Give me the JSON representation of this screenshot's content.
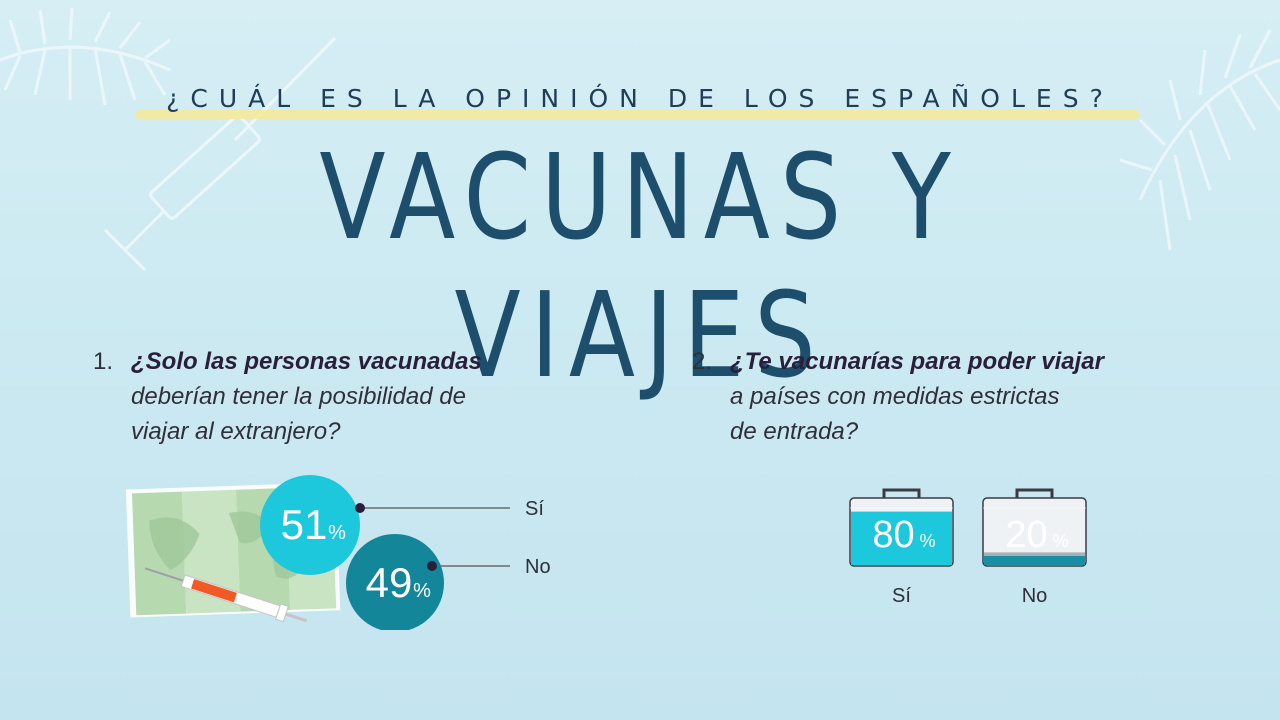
{
  "header": {
    "subtitle": "¿CUÁL ES LA OPINIÓN DE LOS ESPAÑOLES?",
    "title": "VACUNAS Y VIAJES"
  },
  "questions": [
    {
      "number": "1.",
      "bold": "¿Solo las personas vacunadas",
      "line2": "deberían tener la posibilidad de",
      "line3": "viajar al extranjero?"
    },
    {
      "number": "2.",
      "bold": "¿Te vacunarías para poder viajar",
      "line2": "a países con medidas estrictas",
      "line3": "de entrada?"
    }
  ],
  "colors": {
    "cyan": "#1ec8dc",
    "teal": "#14869a",
    "title": "#1d4f6c",
    "case_gray": "#a7b1b8"
  },
  "chart_data": [
    {
      "type": "bubble",
      "question": "1",
      "categories": [
        "Sí",
        "No"
      ],
      "values": [
        51,
        49
      ],
      "value_labels": [
        "51",
        "49"
      ],
      "unit": "%",
      "colors": [
        "#1ec8dc",
        "#14869a"
      ]
    },
    {
      "type": "bar",
      "question": "2",
      "categories": [
        "Sí",
        "No"
      ],
      "values": [
        80,
        20
      ],
      "value_labels": [
        "80",
        "20"
      ],
      "unit": "%",
      "colors": [
        "#1ec8dc",
        "#a7b1b8"
      ]
    }
  ]
}
